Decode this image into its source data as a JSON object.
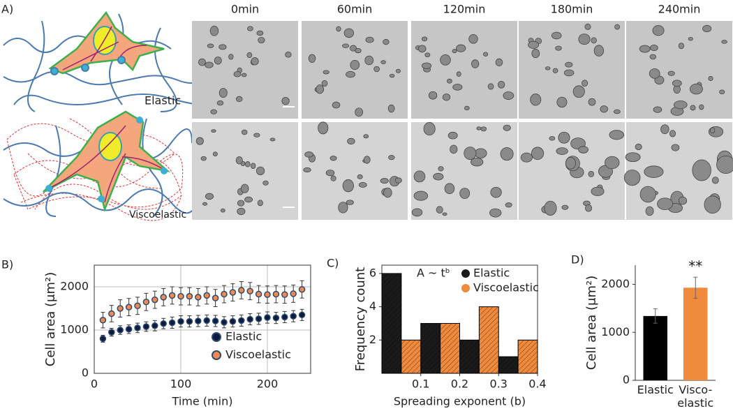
{
  "panel_a": {
    "label": "A)",
    "time_labels": [
      "0min",
      "60min",
      "120min",
      "180min",
      "240min"
    ],
    "row_labels": [
      "Elastic",
      "Viscoelastic"
    ]
  },
  "chart_data": [
    {
      "type": "scatter",
      "panel_label": "B)",
      "xlabel": "Time (min)",
      "ylabel": "Cell area (μm²)",
      "x": [
        10,
        20,
        30,
        40,
        50,
        60,
        70,
        80,
        90,
        100,
        110,
        120,
        130,
        140,
        150,
        160,
        170,
        180,
        190,
        200,
        210,
        220,
        230,
        240
      ],
      "series": [
        {
          "name": "Elastic",
          "color": "#0d1b3e",
          "values": [
            800,
            950,
            1000,
            1020,
            1050,
            1080,
            1100,
            1150,
            1170,
            1200,
            1200,
            1210,
            1220,
            1210,
            1180,
            1200,
            1220,
            1250,
            1260,
            1290,
            1280,
            1300,
            1320,
            1350
          ],
          "errors": [
            80,
            90,
            100,
            100,
            110,
            110,
            120,
            120,
            130,
            130,
            130,
            130,
            130,
            130,
            130,
            130,
            130,
            130,
            130,
            130,
            130,
            130,
            130,
            130
          ]
        },
        {
          "name": "Viscoelastic",
          "color": "#f08a50",
          "values": [
            1230,
            1380,
            1500,
            1530,
            1560,
            1650,
            1700,
            1760,
            1800,
            1780,
            1780,
            1760,
            1800,
            1740,
            1830,
            1870,
            1920,
            1900,
            1830,
            1820,
            1830,
            1820,
            1840,
            1940
          ],
          "errors": [
            180,
            190,
            200,
            200,
            200,
            200,
            200,
            200,
            200,
            200,
            200,
            200,
            200,
            200,
            200,
            200,
            200,
            200,
            200,
            200,
            200,
            200,
            200,
            200
          ]
        }
      ],
      "xlim": [
        0,
        250
      ],
      "xticks": [
        0,
        100,
        200
      ],
      "ylim": [
        0,
        2500
      ],
      "yticks": [
        0,
        1000,
        2000
      ],
      "grid": true,
      "legend": "lower-right"
    },
    {
      "type": "histogram",
      "panel_label": "C)",
      "xlabel": "Spreading exponent (b)",
      "ylabel": "Frequency count",
      "annotation": "A ~ tᵇ",
      "bins": [
        0,
        0.1,
        0.2,
        0.3,
        0.4
      ],
      "series": [
        {
          "name": "Elastic",
          "color": "#1a1a1a",
          "values": [
            6,
            3,
            2,
            1
          ]
        },
        {
          "name": "Viscoelastic",
          "color": "#f08a3c",
          "values": [
            2,
            3,
            4,
            2
          ]
        }
      ],
      "xlim": [
        0,
        0.4
      ],
      "xticks": [
        0.1,
        0.2,
        0.3,
        0.4
      ],
      "ylim": [
        0,
        6.5
      ],
      "yticks": [
        2,
        4,
        6
      ],
      "grid": false,
      "legend": "upper-right"
    },
    {
      "type": "bar",
      "panel_label": "D)",
      "ylabel": "Cell area (μm²)",
      "annotation": "**",
      "categories": [
        "Elastic",
        "Visco-elastic"
      ],
      "values": [
        1340,
        1930
      ],
      "errors": [
        150,
        220
      ],
      "colors": [
        "#000000",
        "#f08a3c"
      ],
      "ylim": [
        0,
        2400
      ],
      "yticks": [
        0,
        1000,
        2000
      ],
      "grid": false
    }
  ]
}
